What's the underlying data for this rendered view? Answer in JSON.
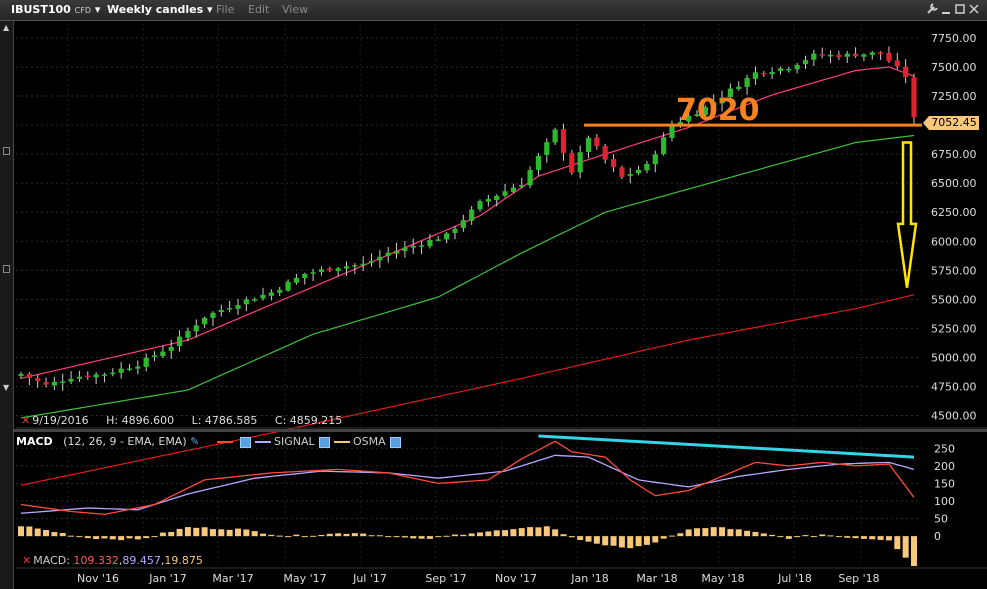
{
  "header": {
    "symbol": "IBUST100",
    "symbol_type": "CFD",
    "timeframe": "Weekly candles",
    "menus": [
      "File",
      "Edit",
      "View"
    ],
    "icons": [
      "wrench-icon",
      "minimize-icon",
      "maximize-icon",
      "close-icon"
    ]
  },
  "ohlc": {
    "date": "9/19/2016",
    "high": "H: 4896.600",
    "low": "L: 4786.585",
    "close": "C: 4859.215"
  },
  "price_label": "7052.45",
  "annotation": "7020",
  "macd_header": {
    "name": "MACD",
    "params": "(12, 26, 9 - EMA, EMA)",
    "legend": [
      {
        "name": "",
        "color": "#ff4a3a"
      },
      {
        "name": "SIGNAL",
        "color": "#b9a6ff"
      },
      {
        "name": "OSMA",
        "color": "#f7c77a"
      }
    ]
  },
  "macd_values": {
    "label": "MACD:",
    "macd": "109.332",
    "signal": "89.457",
    "osma": "19.875"
  },
  "colors": {
    "up": "#2eb82e",
    "down": "#e0212e",
    "ma_fast": "#ff3d7f",
    "ma_mid": "#3fbf3f",
    "ma_slow": "#e01b1b",
    "level_line": "#f58220",
    "arrow": "#ffe600",
    "trend": "#34d4e8"
  },
  "chart_data": [
    {
      "type": "candlestick",
      "y_ticks": [
        4500,
        4750,
        5000,
        5250,
        5500,
        5750,
        6000,
        6250,
        6500,
        6750,
        7000,
        7250,
        7500,
        7750
      ],
      "y_tick_labels": [
        "4500.00",
        "4750.00",
        "5000.00",
        "5250.00",
        "5500.00",
        "5750.00",
        "6000.00",
        "6250.00",
        "6500.00",
        "6750.00",
        "7000.00",
        "7250.00",
        "7500.00",
        "7750.00"
      ],
      "ylim": [
        4410,
        7870
      ],
      "x_labels": [
        "Nov '16",
        "Jan '17",
        "Mar '17",
        "May '17",
        "Jul '17",
        "Sep '17",
        "Nov '17",
        "Jan '18",
        "Mar '18",
        "May '18",
        "Jul '18",
        "Sep '18"
      ],
      "first_week": "9/19/2016",
      "weeks": 108,
      "close_anchors": [
        [
          0,
          4859
        ],
        [
          3,
          4760
        ],
        [
          6,
          4830
        ],
        [
          10,
          4860
        ],
        [
          14,
          4940
        ],
        [
          18,
          5100
        ],
        [
          22,
          5350
        ],
        [
          26,
          5470
        ],
        [
          30,
          5560
        ],
        [
          34,
          5720
        ],
        [
          38,
          5780
        ],
        [
          41,
          5800
        ],
        [
          44,
          5900
        ],
        [
          47,
          5960
        ],
        [
          51,
          6050
        ],
        [
          55,
          6330
        ],
        [
          60,
          6500
        ],
        [
          64,
          6950
        ],
        [
          66,
          6600
        ],
        [
          68,
          6900
        ],
        [
          70,
          6700
        ],
        [
          72,
          6550
        ],
        [
          75,
          6650
        ],
        [
          78,
          7000
        ],
        [
          82,
          7150
        ],
        [
          86,
          7350
        ],
        [
          88,
          7450
        ],
        [
          92,
          7500
        ],
        [
          95,
          7600
        ],
        [
          98,
          7600
        ],
        [
          103,
          7620
        ],
        [
          106,
          7420
        ],
        [
          107,
          7052
        ]
      ],
      "ma_fast_anchors": [
        [
          0,
          4820
        ],
        [
          20,
          5150
        ],
        [
          40,
          5760
        ],
        [
          55,
          6220
        ],
        [
          62,
          6560
        ],
        [
          70,
          6750
        ],
        [
          80,
          6980
        ],
        [
          90,
          7260
        ],
        [
          100,
          7470
        ],
        [
          104,
          7500
        ],
        [
          107,
          7420
        ]
      ],
      "ma_mid_anchors": [
        [
          0,
          4480
        ],
        [
          20,
          4720
        ],
        [
          35,
          5200
        ],
        [
          50,
          5520
        ],
        [
          60,
          5900
        ],
        [
          70,
          6250
        ],
        [
          80,
          6450
        ],
        [
          90,
          6650
        ],
        [
          100,
          6850
        ],
        [
          107,
          6910
        ]
      ],
      "ma_slow_anchors": [
        [
          0,
          3900
        ],
        [
          30,
          4350
        ],
        [
          60,
          4820
        ],
        [
          80,
          5150
        ],
        [
          100,
          5420
        ],
        [
          107,
          5540
        ]
      ],
      "resistance_level": 7000,
      "arrow_target": 5600
    },
    {
      "type": "macd",
      "y_ticks": [
        0,
        50,
        100,
        150,
        200,
        250
      ],
      "y_tick_labels": [
        "0",
        "50",
        "100",
        "150",
        "200",
        "250"
      ],
      "ylim": [
        -85,
        285
      ],
      "macd_anchors": [
        [
          0,
          90
        ],
        [
          6,
          70
        ],
        [
          10,
          62
        ],
        [
          16,
          90
        ],
        [
          22,
          160
        ],
        [
          30,
          180
        ],
        [
          38,
          190
        ],
        [
          44,
          180
        ],
        [
          50,
          150
        ],
        [
          56,
          160
        ],
        [
          60,
          220
        ],
        [
          64,
          270
        ],
        [
          66,
          240
        ],
        [
          70,
          225
        ],
        [
          73,
          160
        ],
        [
          76,
          115
        ],
        [
          80,
          130
        ],
        [
          84,
          170
        ],
        [
          88,
          210
        ],
        [
          92,
          200
        ],
        [
          96,
          210
        ],
        [
          100,
          200
        ],
        [
          104,
          205
        ],
        [
          107,
          110
        ]
      ],
      "signal_anchors": [
        [
          0,
          65
        ],
        [
          8,
          80
        ],
        [
          14,
          75
        ],
        [
          20,
          120
        ],
        [
          28,
          165
        ],
        [
          36,
          185
        ],
        [
          44,
          180
        ],
        [
          50,
          165
        ],
        [
          58,
          185
        ],
        [
          64,
          230
        ],
        [
          68,
          225
        ],
        [
          74,
          160
        ],
        [
          80,
          140
        ],
        [
          86,
          170
        ],
        [
          92,
          190
        ],
        [
          98,
          205
        ],
        [
          104,
          210
        ],
        [
          107,
          190
        ]
      ],
      "osma_anchors": [
        [
          0,
          30
        ],
        [
          8,
          -5
        ],
        [
          14,
          -10
        ],
        [
          20,
          25
        ],
        [
          26,
          20
        ],
        [
          32,
          0
        ],
        [
          40,
          10
        ],
        [
          48,
          -10
        ],
        [
          54,
          10
        ],
        [
          60,
          20
        ],
        [
          63,
          30
        ],
        [
          66,
          -5
        ],
        [
          70,
          -25
        ],
        [
          72,
          -35
        ],
        [
          76,
          -20
        ],
        [
          80,
          20
        ],
        [
          84,
          25
        ],
        [
          88,
          10
        ],
        [
          92,
          -5
        ],
        [
          96,
          5
        ],
        [
          100,
          -5
        ],
        [
          104,
          -10
        ],
        [
          107,
          -85
        ]
      ],
      "trend_line": [
        [
          62,
          285
        ],
        [
          107,
          225
        ]
      ]
    }
  ]
}
